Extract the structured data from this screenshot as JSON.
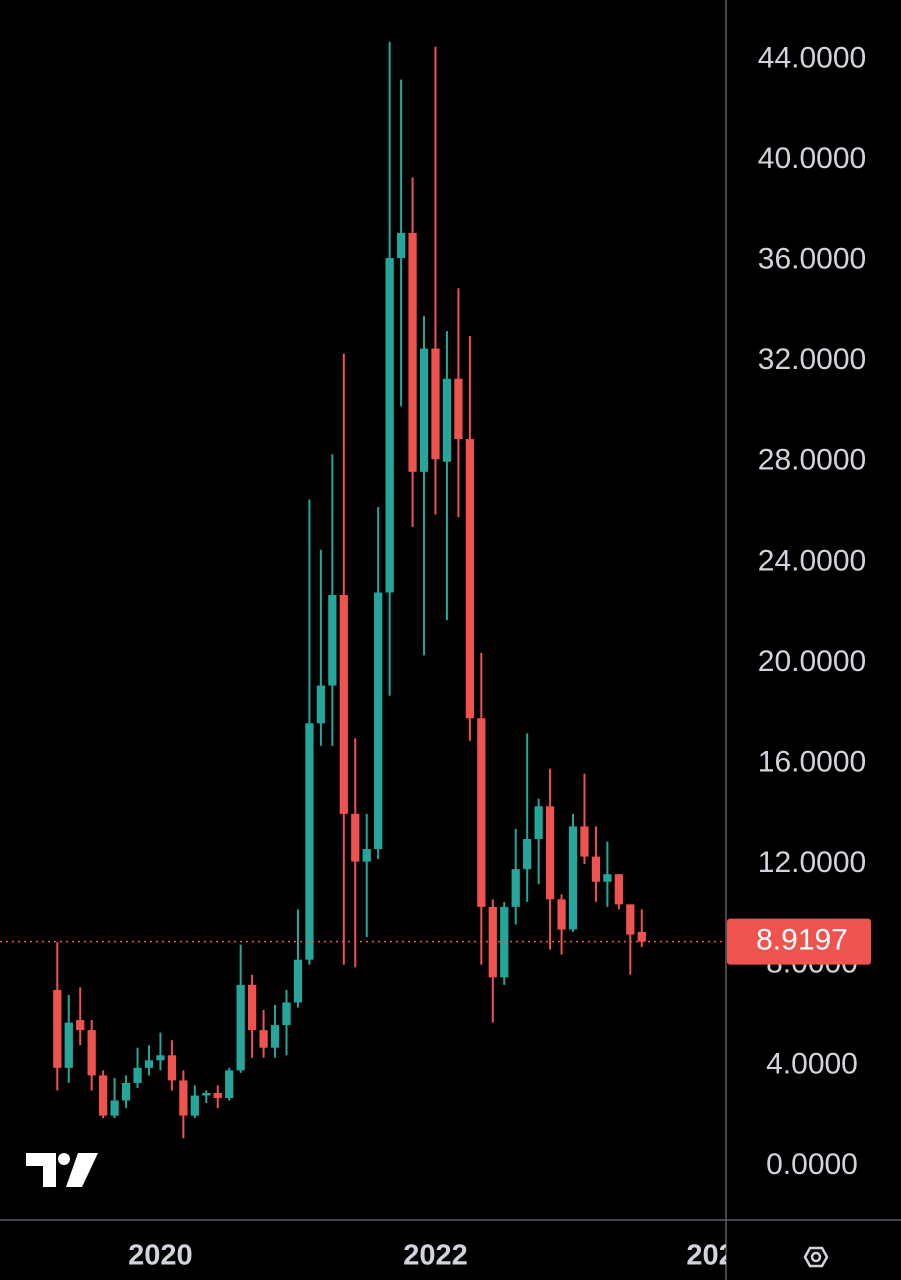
{
  "chart_data": {
    "type": "candlestick",
    "x": [
      0,
      1,
      2,
      3,
      4,
      5,
      6,
      7,
      8,
      9,
      10,
      11,
      12,
      13,
      14,
      15,
      16,
      17,
      18,
      19,
      20,
      21,
      22,
      23,
      24,
      25,
      26,
      27,
      28,
      29,
      30,
      31,
      32,
      33,
      34,
      35,
      36,
      37,
      38,
      39,
      40,
      41,
      42,
      43,
      44,
      45,
      46,
      47,
      48,
      49,
      50,
      51
    ],
    "open": [
      7.0,
      3.9,
      5.8,
      5.4,
      3.6,
      2.0,
      2.6,
      3.3,
      3.9,
      4.2,
      4.4,
      3.4,
      2.0,
      2.8,
      2.9,
      2.7,
      3.8,
      7.2,
      5.4,
      4.7,
      5.6,
      6.5,
      8.2,
      17.6,
      19.1,
      22.7,
      14.0,
      12.1,
      12.6,
      22.8,
      36.1,
      37.1,
      27.6,
      32.5,
      28.0,
      31.3,
      28.9,
      17.8,
      10.3,
      7.5,
      10.3,
      11.8,
      13.0,
      14.3,
      10.6,
      9.4,
      13.5,
      12.3,
      11.3,
      11.6,
      10.4,
      9.3
    ],
    "high": [
      8.9,
      6.8,
      7.1,
      5.8,
      3.8,
      3.5,
      3.6,
      4.7,
      4.8,
      5.3,
      5.0,
      3.8,
      3.2,
      3.0,
      3.2,
      3.9,
      8.8,
      7.6,
      6.2,
      6.4,
      7.0,
      10.2,
      26.5,
      24.5,
      28.3,
      32.3,
      17.0,
      14.0,
      26.2,
      44.7,
      43.2,
      39.3,
      33.8,
      44.5,
      33.2,
      34.9,
      33.0,
      20.4,
      10.6,
      10.5,
      13.4,
      17.2,
      14.6,
      15.8,
      10.8,
      14.0,
      15.6,
      13.5,
      12.9,
      11.6,
      10.4,
      10.2
    ],
    "low": [
      3.0,
      3.3,
      4.8,
      3.0,
      1.9,
      1.9,
      2.3,
      3.1,
      3.6,
      3.8,
      3.0,
      1.1,
      1.9,
      2.5,
      2.3,
      2.6,
      3.7,
      4.3,
      4.3,
      4.3,
      4.4,
      6.3,
      8.0,
      16.7,
      16.7,
      8.0,
      7.9,
      9.1,
      12.2,
      18.7,
      30.2,
      25.4,
      20.3,
      25.9,
      21.7,
      25.8,
      16.9,
      8.0,
      5.7,
      7.2,
      9.6,
      10.5,
      11.2,
      8.6,
      8.4,
      9.3,
      12.0,
      10.5,
      10.3,
      10.2,
      7.6,
      8.7
    ],
    "close": [
      3.9,
      5.7,
      5.4,
      3.6,
      2.0,
      2.6,
      3.3,
      3.9,
      4.2,
      4.4,
      3.4,
      2.0,
      2.8,
      2.9,
      2.7,
      3.8,
      7.2,
      5.4,
      4.7,
      5.6,
      6.5,
      8.2,
      17.6,
      19.1,
      22.7,
      14.0,
      12.1,
      12.6,
      22.8,
      36.1,
      37.1,
      27.6,
      32.5,
      28.1,
      31.3,
      28.9,
      17.8,
      10.3,
      7.5,
      10.3,
      11.8,
      13.0,
      14.3,
      10.6,
      9.4,
      13.5,
      12.3,
      11.3,
      11.6,
      10.4,
      9.2,
      8.9197
    ],
    "up_color": "#26a69a",
    "down_color": "#ef5350",
    "xlim": [
      -5,
      58.35
    ],
    "ylim": [
      -2.15,
      46.36
    ],
    "xticks": [
      {
        "value": 9,
        "label": "2020"
      },
      {
        "value": 33,
        "label": "2022"
      },
      {
        "value": 57,
        "label": "202"
      }
    ],
    "yticks": [
      {
        "value": 0,
        "label": "0.0000"
      },
      {
        "value": 4,
        "label": "4.0000"
      },
      {
        "value": 8,
        "label": "8.0000"
      },
      {
        "value": 12,
        "label": "12.0000"
      },
      {
        "value": 16,
        "label": "16.0000"
      },
      {
        "value": 20,
        "label": "20.0000"
      },
      {
        "value": 24,
        "label": "24.0000"
      },
      {
        "value": 28,
        "label": "28.0000"
      },
      {
        "value": 32,
        "label": "32.0000"
      },
      {
        "value": 36,
        "label": "36.0000"
      },
      {
        "value": 40,
        "label": "40.0000"
      },
      {
        "value": 44,
        "label": "44.0000"
      }
    ]
  }
}
